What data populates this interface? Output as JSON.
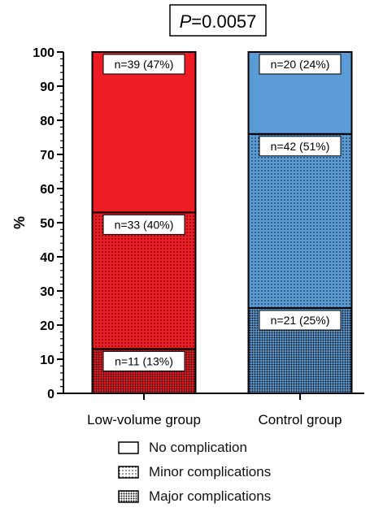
{
  "chart_data": {
    "type": "bar",
    "stacked": true,
    "title": "P=0.0057",
    "title_italic_prefix": "P",
    "ylabel": "%",
    "xlabel": "",
    "ylim": [
      0,
      100
    ],
    "yticks": [
      "0",
      "10",
      "20",
      "30",
      "40",
      "50",
      "60",
      "70",
      "80",
      "90",
      "100"
    ],
    "categories": [
      "Low-volume group",
      "Control group"
    ],
    "series": [
      {
        "name": "Major complications",
        "pattern": "dense-dots",
        "values": [
          13,
          25
        ],
        "labels": [
          "n=11  (13%)",
          "n=21  (25%)"
        ]
      },
      {
        "name": "Minor complications",
        "pattern": "dots",
        "values": [
          40,
          51
        ],
        "labels": [
          "n=33  (40%)",
          "n=42  (51%)"
        ]
      },
      {
        "name": "No complication",
        "pattern": "solid",
        "values": [
          47,
          24
        ],
        "labels": [
          "n=39 (47%)",
          "n=20 (24%)"
        ]
      }
    ],
    "category_colors": [
      "#ee1c25",
      "#5b9bd5"
    ],
    "grid": false,
    "legend_position": "bottom"
  }
}
